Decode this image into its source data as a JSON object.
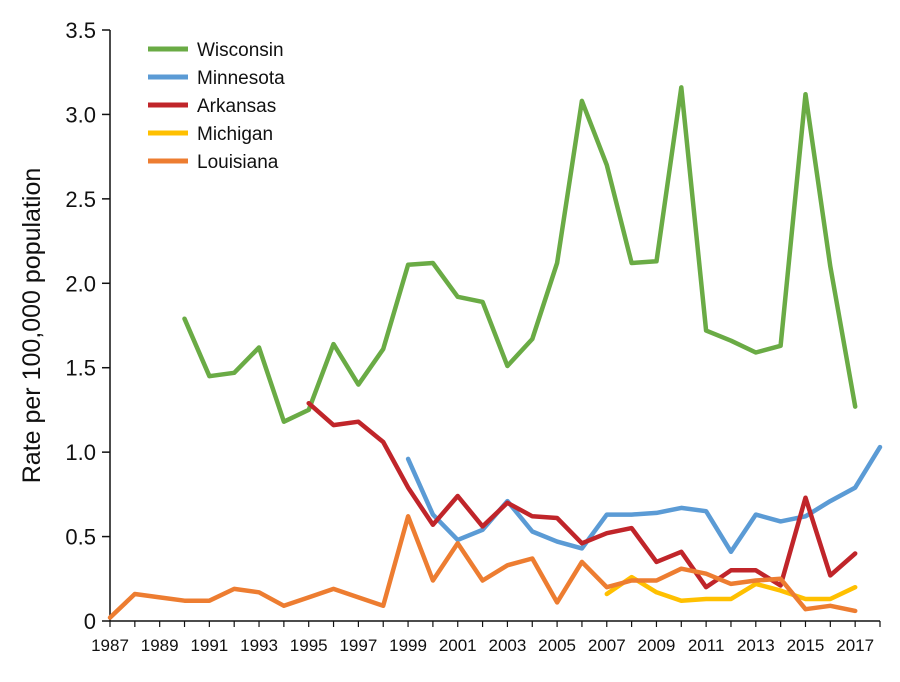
{
  "chart_data": {
    "type": "line",
    "title": "",
    "xlabel": "",
    "ylabel": "Rate per 100,000 population",
    "xlim": [
      1987,
      2018
    ],
    "ylim": [
      0,
      3.5
    ],
    "x_tick_labels": [
      "1987",
      "1989",
      "1991",
      "1993",
      "1995",
      "1997",
      "1999",
      "2001",
      "2003",
      "2005",
      "2007",
      "2009",
      "2011",
      "2013",
      "2015",
      "2017"
    ],
    "y_tick_labels": [
      "0",
      "0.5",
      "1.0",
      "1.5",
      "2.0",
      "2.5",
      "3.0",
      "3.5"
    ],
    "grid": false,
    "legend_position": "top-left",
    "series": [
      {
        "name": "Wisconsin",
        "color": "#6aab45",
        "x": [
          1990,
          1991,
          1992,
          1993,
          1994,
          1995,
          1996,
          1997,
          1998,
          1999,
          2000,
          2001,
          2002,
          2003,
          2004,
          2005,
          2006,
          2007,
          2008,
          2009,
          2010,
          2011,
          2012,
          2013,
          2014,
          2015,
          2016,
          2017
        ],
        "y": [
          1.79,
          1.45,
          1.47,
          1.62,
          1.18,
          1.25,
          1.64,
          1.4,
          1.61,
          2.11,
          2.12,
          1.92,
          1.89,
          1.51,
          1.67,
          2.12,
          3.08,
          2.7,
          2.12,
          2.13,
          3.16,
          1.72,
          1.66,
          1.59,
          1.63,
          3.12,
          2.1,
          1.27
        ]
      },
      {
        "name": "Minnesota",
        "color": "#5b9bd5",
        "x": [
          1999,
          2000,
          2001,
          2002,
          2003,
          2004,
          2005,
          2006,
          2007,
          2008,
          2009,
          2010,
          2011,
          2012,
          2013,
          2014,
          2015,
          2016,
          2017,
          2018
        ],
        "y": [
          0.96,
          0.63,
          0.48,
          0.54,
          0.71,
          0.53,
          0.47,
          0.43,
          0.63,
          0.63,
          0.64,
          0.67,
          0.65,
          0.41,
          0.63,
          0.59,
          0.62,
          0.71,
          0.79,
          1.03
        ]
      },
      {
        "name": "Arkansas",
        "color": "#c0252a",
        "x": [
          1995,
          1996,
          1997,
          1998,
          1999,
          2000,
          2001,
          2002,
          2003,
          2004,
          2005,
          2006,
          2007,
          2008,
          2009,
          2010,
          2011,
          2012,
          2013,
          2014,
          2015,
          2016,
          2017
        ],
        "y": [
          1.29,
          1.16,
          1.18,
          1.06,
          0.79,
          0.57,
          0.74,
          0.56,
          0.7,
          0.62,
          0.61,
          0.46,
          0.52,
          0.55,
          0.35,
          0.41,
          0.2,
          0.3,
          0.3,
          0.21,
          0.73,
          0.27,
          0.4
        ]
      },
      {
        "name": "Michigan",
        "color": "#ffc000",
        "x": [
          2007,
          2008,
          2009,
          2010,
          2011,
          2012,
          2013,
          2014,
          2015,
          2016,
          2017
        ],
        "y": [
          0.16,
          0.26,
          0.17,
          0.12,
          0.13,
          0.13,
          0.22,
          0.18,
          0.13,
          0.13,
          0.2
        ]
      },
      {
        "name": "Louisiana",
        "color": "#ed7d31",
        "x": [
          1987,
          1988,
          1989,
          1990,
          1991,
          1992,
          1993,
          1994,
          1995,
          1996,
          1997,
          1998,
          1999,
          2000,
          2001,
          2002,
          2003,
          2004,
          2005,
          2006,
          2007,
          2008,
          2009,
          2010,
          2011,
          2012,
          2013,
          2014,
          2015,
          2016,
          2017
        ],
        "y": [
          0.02,
          0.16,
          0.14,
          0.12,
          0.12,
          0.19,
          0.17,
          0.09,
          0.14,
          0.19,
          0.14,
          0.09,
          0.62,
          0.24,
          0.46,
          0.24,
          0.33,
          0.37,
          0.11,
          0.35,
          0.2,
          0.24,
          0.24,
          0.31,
          0.28,
          0.22,
          0.24,
          0.25,
          0.07,
          0.09,
          0.06
        ]
      }
    ]
  }
}
